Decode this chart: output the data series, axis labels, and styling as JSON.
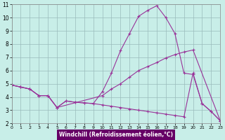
{
  "xlabel": "Windchill (Refroidissement éolien,°C)",
  "bg_color": "#c8eee8",
  "grid_color": "#99bbbb",
  "line_color": "#993399",
  "label_bg": "#660066",
  "label_fg": "#ffffff",
  "xlim": [
    0,
    23
  ],
  "ylim": [
    2,
    11
  ],
  "yticks": [
    2,
    3,
    4,
    5,
    6,
    7,
    8,
    9,
    10,
    11
  ],
  "xticks": [
    0,
    1,
    2,
    3,
    4,
    5,
    6,
    7,
    8,
    9,
    10,
    11,
    12,
    13,
    14,
    15,
    16,
    17,
    18,
    19,
    20,
    21,
    22,
    23
  ],
  "line1_x": [
    0,
    1,
    2,
    3,
    4,
    5,
    6,
    7,
    8,
    9,
    10,
    11,
    12,
    13,
    14,
    15,
    16,
    17,
    18,
    19,
    20,
    21,
    22,
    23
  ],
  "line1_y": [
    4.9,
    4.75,
    4.6,
    4.1,
    4.1,
    3.2,
    3.7,
    3.6,
    3.55,
    3.5,
    4.4,
    5.8,
    7.5,
    8.8,
    10.1,
    10.55,
    10.9,
    10.0,
    8.8,
    5.8,
    5.7,
    3.5,
    2.9,
    2.2
  ],
  "line2_x": [
    0,
    1,
    2,
    3,
    4,
    5,
    10,
    11,
    12,
    13,
    14,
    15,
    16,
    17,
    18,
    19,
    20,
    23
  ],
  "line2_y": [
    4.9,
    4.75,
    4.6,
    4.1,
    4.1,
    3.2,
    4.1,
    4.6,
    5.0,
    5.5,
    6.0,
    6.3,
    6.6,
    6.95,
    7.2,
    7.4,
    7.55,
    2.2
  ],
  "line3_x": [
    0,
    1,
    2,
    3,
    4,
    5,
    6,
    7,
    8,
    9,
    10,
    11,
    12,
    13,
    14,
    15,
    16,
    17,
    18,
    19,
    20,
    21,
    22,
    23
  ],
  "line3_y": [
    4.9,
    4.75,
    4.6,
    4.1,
    4.1,
    3.2,
    3.7,
    3.6,
    3.55,
    3.5,
    3.4,
    3.3,
    3.2,
    3.1,
    3.0,
    2.9,
    2.8,
    2.7,
    2.6,
    2.5,
    5.8,
    3.5,
    2.9,
    2.2
  ]
}
